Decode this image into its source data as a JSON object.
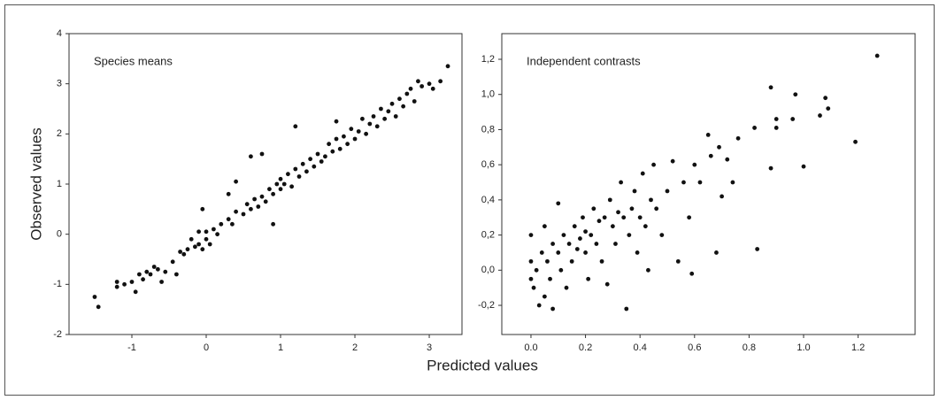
{
  "x_label": "Predicted values",
  "y_label": "Observed values",
  "chart_data": [
    {
      "type": "scatter",
      "annotation": "Species means",
      "color": "#111111",
      "xlim": [
        -1.845,
        3.44
      ],
      "ylim": [
        -2,
        4
      ],
      "xticks": [
        -1,
        0,
        1,
        2,
        3
      ],
      "yticks": [
        -2,
        -1,
        0,
        1,
        2,
        3,
        4
      ],
      "x": [
        -1.5,
        -1.45,
        -1.2,
        -1.2,
        -1.1,
        -1.0,
        -0.95,
        -0.9,
        -0.85,
        -0.8,
        -0.75,
        -0.7,
        -0.65,
        -0.6,
        -0.55,
        -0.45,
        -0.4,
        -0.35,
        -0.3,
        -0.25,
        -0.2,
        -0.15,
        -0.1,
        -0.1,
        -0.05,
        -0.05,
        0.0,
        0.0,
        0.05,
        0.1,
        0.15,
        0.2,
        0.3,
        0.35,
        0.4,
        0.4,
        0.5,
        0.55,
        0.6,
        0.65,
        0.7,
        0.75,
        0.8,
        0.85,
        0.9,
        0.9,
        0.95,
        1.0,
        1.0,
        1.05,
        1.1,
        1.15,
        1.2,
        1.25,
        1.3,
        1.35,
        1.4,
        1.45,
        1.5,
        1.55,
        1.6,
        1.65,
        1.7,
        1.75,
        1.8,
        1.85,
        1.9,
        1.95,
        2.0,
        2.05,
        2.1,
        2.15,
        2.2,
        2.25,
        2.3,
        2.35,
        2.4,
        2.45,
        2.5,
        2.55,
        2.6,
        2.65,
        2.7,
        2.75,
        2.8,
        2.85,
        2.9,
        3.0,
        3.05,
        3.15,
        3.25,
        1.2,
        0.6,
        0.75,
        1.75,
        0.3
      ],
      "y": [
        -1.25,
        -1.45,
        -0.95,
        -1.05,
        -1.0,
        -0.95,
        -1.15,
        -0.8,
        -0.9,
        -0.75,
        -0.8,
        -0.65,
        -0.7,
        -0.95,
        -0.75,
        -0.55,
        -0.8,
        -0.35,
        -0.4,
        -0.3,
        -0.1,
        -0.25,
        0.05,
        -0.2,
        0.5,
        -0.3,
        -0.1,
        0.05,
        -0.2,
        0.1,
        0.0,
        0.2,
        0.3,
        0.2,
        0.45,
        1.05,
        0.4,
        0.6,
        0.5,
        0.7,
        0.55,
        0.75,
        0.65,
        0.9,
        0.8,
        0.2,
        1.0,
        0.9,
        1.1,
        1.0,
        1.2,
        0.95,
        1.3,
        1.15,
        1.4,
        1.25,
        1.5,
        1.35,
        1.6,
        1.45,
        1.55,
        1.8,
        1.65,
        1.9,
        1.7,
        1.95,
        1.8,
        2.1,
        1.9,
        2.05,
        2.3,
        2.0,
        2.2,
        2.35,
        2.15,
        2.5,
        2.3,
        2.45,
        2.6,
        2.35,
        2.7,
        2.55,
        2.8,
        2.9,
        2.65,
        3.05,
        2.95,
        3.0,
        2.9,
        3.05,
        3.35,
        2.15,
        1.55,
        1.6,
        2.25,
        0.8
      ]
    },
    {
      "type": "scatter",
      "annotation": "Independent contrasts",
      "color": "#111111",
      "xlim": [
        -0.107,
        1.409
      ],
      "ylim": [
        -0.366,
        1.346
      ],
      "xticks": [
        {
          "value": 0,
          "label": "0.0"
        },
        0.2,
        0.4,
        0.6,
        0.8,
        {
          "value": 1,
          "label": "1.0"
        },
        1.2
      ],
      "yticks": [
        {
          "value": -0.2,
          "label": "-0,2"
        },
        {
          "value": 0,
          "label": "0,0"
        },
        {
          "value": 0.2,
          "label": "0,2"
        },
        {
          "value": 0.4,
          "label": "0,4"
        },
        {
          "value": 0.6,
          "label": "0,6"
        },
        {
          "value": 0.8,
          "label": "0,8"
        },
        {
          "value": 1,
          "label": "1,0"
        },
        {
          "value": 1.2,
          "label": "1,2"
        }
      ],
      "x": [
        0.0,
        0.0,
        0.0,
        0.01,
        0.02,
        0.03,
        0.04,
        0.05,
        0.05,
        0.06,
        0.07,
        0.08,
        0.08,
        0.1,
        0.1,
        0.11,
        0.12,
        0.13,
        0.14,
        0.15,
        0.16,
        0.17,
        0.18,
        0.19,
        0.2,
        0.2,
        0.21,
        0.22,
        0.23,
        0.24,
        0.25,
        0.26,
        0.27,
        0.28,
        0.29,
        0.3,
        0.31,
        0.32,
        0.33,
        0.34,
        0.35,
        0.36,
        0.37,
        0.38,
        0.39,
        0.4,
        0.41,
        0.42,
        0.43,
        0.44,
        0.45,
        0.46,
        0.48,
        0.5,
        0.52,
        0.54,
        0.56,
        0.58,
        0.59,
        0.6,
        0.62,
        0.65,
        0.66,
        0.68,
        0.69,
        0.7,
        0.72,
        0.74,
        0.76,
        0.82,
        0.83,
        0.88,
        0.88,
        0.9,
        0.9,
        0.96,
        0.97,
        1.0,
        1.06,
        1.08,
        1.09,
        1.19,
        1.27
      ],
      "y": [
        -0.05,
        0.05,
        0.2,
        -0.1,
        0.0,
        -0.2,
        0.1,
        -0.15,
        0.25,
        0.05,
        -0.05,
        0.15,
        -0.22,
        0.1,
        0.38,
        0.0,
        0.2,
        -0.1,
        0.15,
        0.05,
        0.25,
        0.12,
        0.18,
        0.3,
        0.1,
        0.22,
        -0.05,
        0.2,
        0.35,
        0.15,
        0.28,
        0.05,
        0.3,
        -0.08,
        0.4,
        0.25,
        0.15,
        0.33,
        0.5,
        0.3,
        -0.22,
        0.2,
        0.35,
        0.45,
        0.1,
        0.3,
        0.55,
        0.25,
        0.0,
        0.4,
        0.6,
        0.35,
        0.2,
        0.45,
        0.62,
        0.05,
        0.5,
        0.3,
        -0.02,
        0.6,
        0.5,
        0.77,
        0.65,
        0.1,
        0.7,
        0.42,
        0.63,
        0.5,
        0.75,
        0.81,
        0.12,
        1.04,
        0.58,
        0.86,
        0.81,
        0.86,
        1.0,
        0.59,
        0.88,
        0.98,
        0.92,
        0.73,
        1.22
      ]
    }
  ]
}
